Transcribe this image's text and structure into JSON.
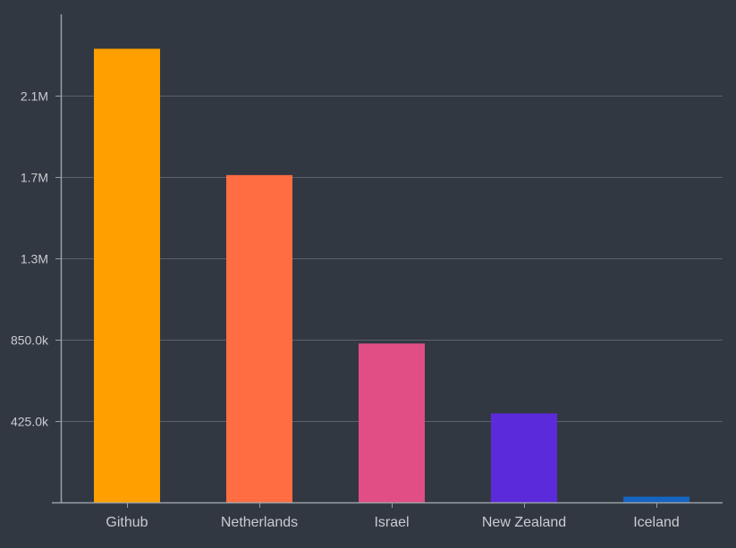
{
  "chart_data": {
    "type": "bar",
    "categories": [
      "Github",
      "Netherlands",
      "Israel",
      "New Zealand",
      "Iceland"
    ],
    "values": [
      2370000,
      1710000,
      830000,
      465000,
      30000
    ],
    "bar_colors": [
      "#FF9F00",
      "#FF6D42",
      "#E04E85",
      "#5B2ADB",
      "#1565C0"
    ],
    "yticks": [
      425000,
      850000,
      1275000,
      1700000,
      2125000
    ],
    "ytick_labels": [
      "425.0k",
      "850.0k",
      "1.3M",
      "1.7M",
      "2.1M"
    ],
    "ylim": [
      0,
      2540000
    ],
    "grid": true,
    "legend": "none",
    "title": "",
    "xlabel": "",
    "ylabel": ""
  },
  "theme": {
    "background": "#323841",
    "grid_color": "#5C626B",
    "axis_color": "#9AA0A8",
    "label_color": "#C9CCD1"
  }
}
